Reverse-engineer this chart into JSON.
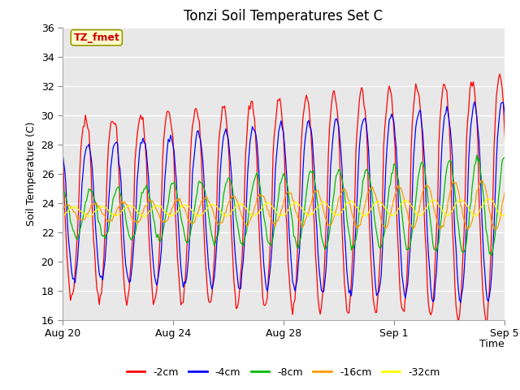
{
  "title": "Tonzi Soil Temperatures Set C",
  "xlabel": "Time",
  "ylabel": "Soil Temperature (C)",
  "ylim": [
    16,
    36
  ],
  "yticks": [
    16,
    18,
    20,
    22,
    24,
    26,
    28,
    30,
    32,
    34,
    36
  ],
  "annotation_text": "TZ_fmet",
  "annotation_bg": "#ffffcc",
  "annotation_border": "#999900",
  "annotation_text_color": "#cc0000",
  "plot_bg_color": "#e8e8e8",
  "series": [
    {
      "label": "-2cm",
      "color": "#ff0000"
    },
    {
      "label": "-4cm",
      "color": "#0000ff"
    },
    {
      "label": "-8cm",
      "color": "#00bb00"
    },
    {
      "label": "-16cm",
      "color": "#ff9900"
    },
    {
      "label": "-32cm",
      "color": "#ffff00"
    }
  ],
  "x_tick_labels": [
    "Aug 20",
    "Aug 24",
    "Aug 28",
    "Sep 1",
    "Sep 5"
  ],
  "x_tick_positions": [
    0,
    4,
    8,
    12,
    16
  ],
  "num_days": 17,
  "ppd": 24
}
